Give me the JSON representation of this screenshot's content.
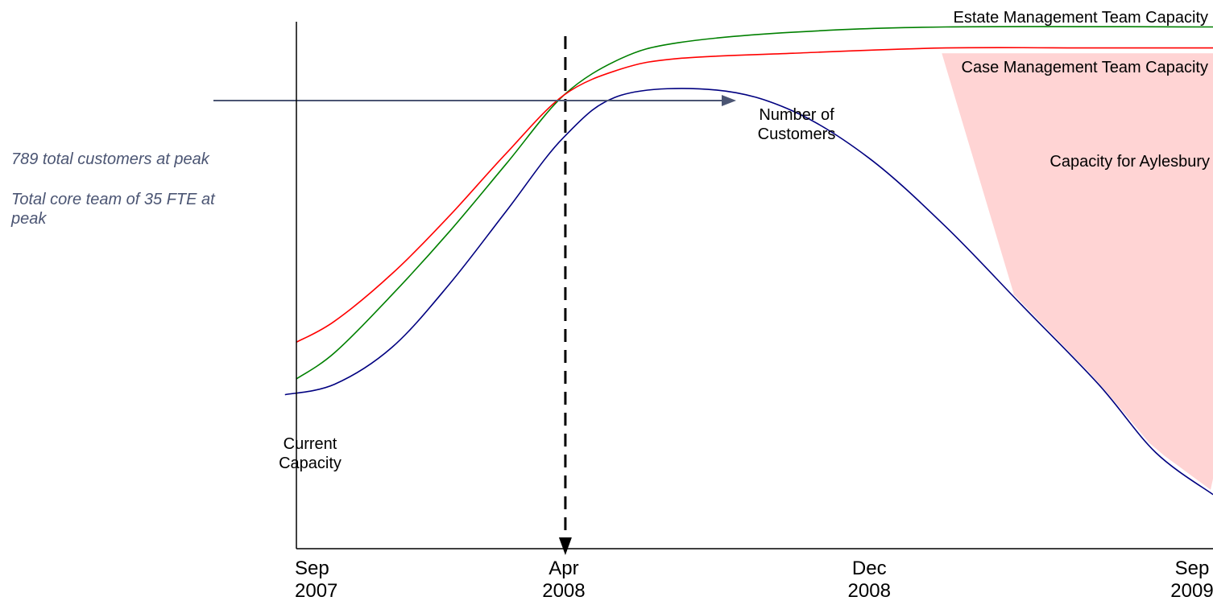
{
  "annotations": {
    "peak_customers": "789 total customers at peak",
    "peak_team": "Total core team of 35 FTE at peak"
  },
  "chart_data": {
    "type": "line",
    "title": "",
    "xlabel": "",
    "ylabel": "",
    "x_ticks": [
      {
        "label_line1": "Sep",
        "label_line2": "2007",
        "month": 0
      },
      {
        "label_line1": "Apr",
        "label_line2": "2008",
        "month": 7
      },
      {
        "label_line1": "Dec",
        "label_line2": "2008",
        "month": 15
      },
      {
        "label_line1": "Sep",
        "label_line2": "2009",
        "month": 24
      }
    ],
    "xlim_months": [
      0,
      24
    ],
    "ylim": [
      0,
      100
    ],
    "grid": false,
    "series": [
      {
        "name": "Estate Management Team Capacity",
        "color": "#008000",
        "points": [
          [
            0,
            32
          ],
          [
            1,
            37
          ],
          [
            2.5,
            48
          ],
          [
            4,
            60
          ],
          [
            5.5,
            73
          ],
          [
            7,
            86
          ],
          [
            8.5,
            93
          ],
          [
            10,
            96
          ],
          [
            13,
            98
          ],
          [
            17,
            99
          ],
          [
            24,
            99
          ]
        ]
      },
      {
        "name": "Case Management Team Capacity",
        "color": "#ff0000",
        "points": [
          [
            0,
            39
          ],
          [
            1,
            43
          ],
          [
            2.5,
            52
          ],
          [
            4,
            63
          ],
          [
            5.5,
            75
          ],
          [
            7,
            86
          ],
          [
            8.5,
            91
          ],
          [
            10,
            93
          ],
          [
            13,
            94
          ],
          [
            17,
            95
          ],
          [
            21,
            95
          ],
          [
            24,
            95
          ]
        ]
      },
      {
        "name": "Number of Customers",
        "label_line1": "Number of",
        "label_line2": "Customers",
        "color": "#000080",
        "points": [
          [
            -0.3,
            29
          ],
          [
            1,
            31
          ],
          [
            2.5,
            38
          ],
          [
            4,
            50
          ],
          [
            5.5,
            64
          ],
          [
            7,
            78
          ],
          [
            8.5,
            86
          ],
          [
            11,
            87
          ],
          [
            13,
            83
          ],
          [
            15,
            74
          ],
          [
            17,
            61
          ],
          [
            19,
            46
          ],
          [
            21,
            31
          ],
          [
            22.5,
            18
          ],
          [
            24,
            10
          ]
        ]
      }
    ],
    "shaded_area": {
      "name": "Capacity for Aylesbury",
      "color": "#ffd4d4"
    },
    "reference_line": {
      "month": 7,
      "style": "dashed"
    },
    "labels": {
      "current_capacity_line1": "Current",
      "current_capacity_line2": "Capacity"
    },
    "colors": {
      "axis": "#000000",
      "peak_arrow": "#4b5573"
    }
  }
}
